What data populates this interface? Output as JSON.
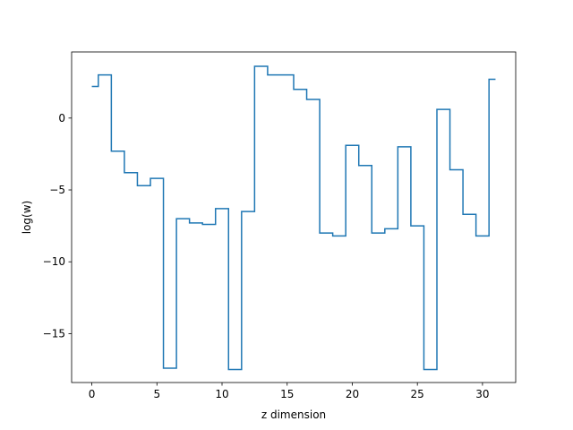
{
  "chart_data": {
    "type": "line",
    "drawstyle": "steps-mid",
    "title": "",
    "xlabel": "z dimension",
    "ylabel": "log(w)",
    "xlim": [
      -1.55,
      32.55
    ],
    "ylim": [
      -18.4,
      4.6
    ],
    "xticks": [
      0,
      5,
      10,
      15,
      20,
      25,
      30
    ],
    "yticks": [
      -15,
      -10,
      -5,
      0
    ],
    "ytick_labels": [
      "−15",
      "−10",
      "−5",
      "0"
    ],
    "grid": false,
    "color": "#1f77b4",
    "series": [
      {
        "x": [
          0,
          1,
          2,
          3,
          4,
          5,
          6,
          7,
          8,
          9,
          10,
          11,
          12,
          13,
          14,
          15,
          16,
          17,
          18,
          19,
          20,
          21,
          22,
          23,
          24,
          25,
          26,
          27,
          28,
          29,
          30,
          31
        ],
        "values": [
          2.2,
          3.0,
          -2.3,
          -3.8,
          -4.7,
          -4.2,
          -17.4,
          -7.0,
          -7.3,
          -7.4,
          -6.3,
          -17.5,
          -6.5,
          3.6,
          3.0,
          3.0,
          2.0,
          1.3,
          -8.0,
          -8.2,
          -1.9,
          -3.3,
          -8.0,
          -7.7,
          -2.0,
          -7.5,
          -17.5,
          0.6,
          -3.6,
          -6.7,
          -8.2,
          2.7
        ]
      }
    ]
  }
}
